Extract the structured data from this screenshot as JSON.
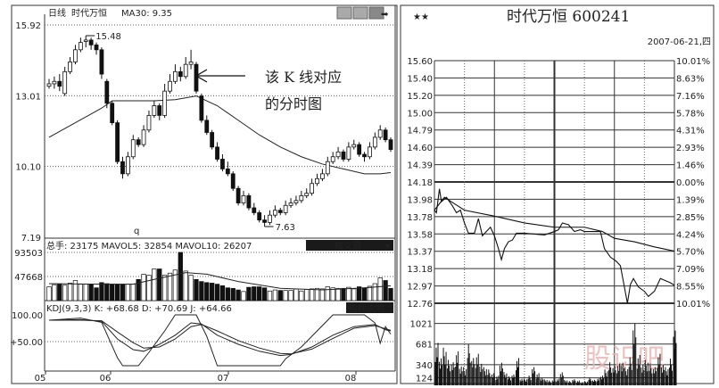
{
  "left_panel": {
    "header": {
      "period": "日线",
      "stock_name": "时代万恒",
      "ma_label": "MA30: 9.35"
    },
    "price_axis": [
      "15.92",
      "13.01",
      "10.10",
      "7.19"
    ],
    "high_label": "15.48",
    "low_label": "7.63",
    "small_mark": "q",
    "annotation": {
      "line1": "该 K 线对应",
      "line2": "的分时图"
    },
    "volume_header": {
      "text": "总手: 23175 MAVOL5: 32854 MAVOL10: 26207",
      "button": "成交量"
    },
    "volume_axis": [
      "93503",
      "47668"
    ],
    "kdj_header": {
      "text": "KDJ(9,3,3) K: +68.68 D: +70.69 J: +64.66",
      "button": "指标说明"
    },
    "kdj_axis": [
      "100.00",
      "+50.00"
    ],
    "date_axis": [
      "05",
      "06",
      "07",
      "08"
    ]
  },
  "right_panel": {
    "title": "时代万恒  600241",
    "date": "2007-06-21,四",
    "price_labels": [
      "15.60",
      "15.40",
      "15.20",
      "15.00",
      "14.79",
      "14.60",
      "14.39",
      "14.18",
      "13.98",
      "13.78",
      "13.58",
      "13.37",
      "13.18",
      "12.97",
      "12.76"
    ],
    "pct_labels": [
      "10.01%",
      "8.63%",
      "7.16%",
      "5.78%",
      "4.31%",
      "2.93%",
      "1.46%",
      "0.00%",
      "1.39%",
      "2.85%",
      "4.24%",
      "5.70%",
      "7.09%",
      "8.55%",
      "10.01%"
    ],
    "volume_labels": [
      "1021",
      "681",
      "340",
      "124"
    ],
    "watermark": "股识吧"
  },
  "colors": {
    "candle_up": "#ffffff",
    "candle_down": "#111111",
    "line": "#222222",
    "grid": "#333333",
    "button_bg": "#1a1a1a",
    "watermark": "#e8b4b0"
  },
  "chart_data": [
    {
      "type": "candlestick",
      "title": "日线 时代万恒",
      "ylim": [
        7.19,
        15.92
      ],
      "candles": [
        [
          13.4,
          13.7,
          13.3,
          13.5
        ],
        [
          13.5,
          13.8,
          13.3,
          13.6
        ],
        [
          13.6,
          13.9,
          13.2,
          13.4
        ],
        [
          13.1,
          14.2,
          13.0,
          14.0
        ],
        [
          14.0,
          14.6,
          13.9,
          14.4
        ],
        [
          14.4,
          15.1,
          14.3,
          14.9
        ],
        [
          14.9,
          15.4,
          14.8,
          15.2
        ],
        [
          15.3,
          15.48,
          15.0,
          15.3
        ],
        [
          15.3,
          15.4,
          14.9,
          15.1
        ],
        [
          15.1,
          15.2,
          14.7,
          14.9
        ],
        [
          14.9,
          15.0,
          13.7,
          13.9
        ],
        [
          13.6,
          13.7,
          12.5,
          12.7
        ],
        [
          12.7,
          12.8,
          11.8,
          11.9
        ],
        [
          11.9,
          12.0,
          10.2,
          10.3
        ],
        [
          10.3,
          10.5,
          9.6,
          9.8
        ],
        [
          9.8,
          10.7,
          9.7,
          10.5
        ],
        [
          10.5,
          11.4,
          10.4,
          11.2
        ],
        [
          11.2,
          11.3,
          10.9,
          11.0
        ],
        [
          11.0,
          11.8,
          10.9,
          11.6
        ],
        [
          11.6,
          12.4,
          11.5,
          12.2
        ],
        [
          12.2,
          12.8,
          12.1,
          12.6
        ],
        [
          12.6,
          12.7,
          12.0,
          12.2
        ],
        [
          12.2,
          13.5,
          12.1,
          13.2
        ],
        [
          13.2,
          13.9,
          13.1,
          13.6
        ],
        [
          13.6,
          14.3,
          13.5,
          14.0
        ],
        [
          14.0,
          14.2,
          13.6,
          13.8
        ],
        [
          13.8,
          14.6,
          13.7,
          14.3
        ],
        [
          14.3,
          14.9,
          14.1,
          14.4
        ],
        [
          14.3,
          14.4,
          13.1,
          13.2
        ],
        [
          13.0,
          13.1,
          11.9,
          12.0
        ],
        [
          12.0,
          12.2,
          11.4,
          11.5
        ],
        [
          11.5,
          11.6,
          10.8,
          10.9
        ],
        [
          10.9,
          11.1,
          10.3,
          10.4
        ],
        [
          10.4,
          10.6,
          9.9,
          10.0
        ],
        [
          10.0,
          10.3,
          9.7,
          9.8
        ],
        [
          9.8,
          9.9,
          9.1,
          9.2
        ],
        [
          9.2,
          9.3,
          8.5,
          8.6
        ],
        [
          8.6,
          9.1,
          8.5,
          8.9
        ],
        [
          8.9,
          9.0,
          8.3,
          8.4
        ],
        [
          8.4,
          8.6,
          8.1,
          8.2
        ],
        [
          8.2,
          8.3,
          7.8,
          7.9
        ],
        [
          7.9,
          8.1,
          7.63,
          7.8
        ],
        [
          7.8,
          8.3,
          7.7,
          8.1
        ],
        [
          8.1,
          8.5,
          8.0,
          8.3
        ],
        [
          8.3,
          8.4,
          8.1,
          8.2
        ],
        [
          8.2,
          8.7,
          8.1,
          8.5
        ],
        [
          8.5,
          8.8,
          8.4,
          8.6
        ],
        [
          8.6,
          8.9,
          8.5,
          8.7
        ],
        [
          8.7,
          9.1,
          8.6,
          8.9
        ],
        [
          8.9,
          9.2,
          8.8,
          9.0
        ],
        [
          9.0,
          9.6,
          8.9,
          9.4
        ],
        [
          9.4,
          9.8,
          9.3,
          9.6
        ],
        [
          9.6,
          10.0,
          9.5,
          9.8
        ],
        [
          9.8,
          10.5,
          9.7,
          10.3
        ],
        [
          10.3,
          10.7,
          10.2,
          10.5
        ],
        [
          10.5,
          10.9,
          10.4,
          10.7
        ],
        [
          10.7,
          10.8,
          10.3,
          10.4
        ],
        [
          10.4,
          11.1,
          10.3,
          10.9
        ],
        [
          10.9,
          11.2,
          10.8,
          11.0
        ],
        [
          11.0,
          11.1,
          10.5,
          10.6
        ],
        [
          10.6,
          10.7,
          10.3,
          10.5
        ],
        [
          10.5,
          11.1,
          10.4,
          10.9
        ],
        [
          10.9,
          11.5,
          10.8,
          11.3
        ],
        [
          11.3,
          11.8,
          11.2,
          11.6
        ],
        [
          11.6,
          11.7,
          11.1,
          11.2
        ],
        [
          11.2,
          11.3,
          10.7,
          10.8
        ]
      ],
      "ma30": [
        [
          0,
          11.3
        ],
        [
          5,
          11.9
        ],
        [
          10,
          12.5
        ],
        [
          12,
          12.8
        ],
        [
          20,
          12.8
        ],
        [
          24,
          12.85
        ],
        [
          28,
          13.0
        ],
        [
          32,
          12.6
        ],
        [
          36,
          12.0
        ],
        [
          40,
          11.4
        ],
        [
          44,
          10.9
        ],
        [
          48,
          10.5
        ],
        [
          52,
          10.2
        ],
        [
          56,
          10.0
        ],
        [
          60,
          9.8
        ],
        [
          63,
          9.8
        ],
        [
          65,
          9.85
        ]
      ]
    },
    {
      "type": "bar",
      "title": "成交量",
      "ylim": [
        0,
        93503
      ],
      "values": [
        28000,
        32000,
        33000,
        31000,
        35000,
        40000,
        33000,
        33000,
        33000,
        26000,
        36000,
        34000,
        33000,
        33000,
        33000,
        33000,
        33000,
        42000,
        52000,
        50000,
        62000,
        62000,
        50000,
        54000,
        60000,
        93503,
        58000,
        50000,
        42000,
        38000,
        36000,
        35000,
        33000,
        30000,
        26000,
        25000,
        22000,
        19000,
        27000,
        28000,
        28000,
        26000,
        20000,
        22000,
        21000,
        21000,
        21000,
        24000,
        20000,
        23000,
        24000,
        25000,
        24000,
        28000,
        26000,
        25000,
        25000,
        27000,
        24000,
        28000,
        26000,
        29000,
        34000,
        45000,
        40000,
        25000
      ],
      "mavol": [
        [
          0,
          34000
        ],
        [
          10,
          33000
        ],
        [
          16,
          33000
        ],
        [
          20,
          42000
        ],
        [
          26,
          55000
        ],
        [
          30,
          52000
        ],
        [
          36,
          38000
        ],
        [
          44,
          25000
        ],
        [
          52,
          22000
        ],
        [
          60,
          26000
        ],
        [
          65,
          30000
        ]
      ]
    },
    {
      "type": "line",
      "title": "KDJ(9,3,3)",
      "ylim": [
        0,
        100
      ],
      "series": [
        {
          "name": "K",
          "points": [
            [
              0,
              90
            ],
            [
              6,
              91
            ],
            [
              10,
              88
            ],
            [
              13,
              55
            ],
            [
              16,
              35
            ],
            [
              18,
              32
            ],
            [
              21,
              45
            ],
            [
              24,
              62
            ],
            [
              27,
              85
            ],
            [
              29,
              83
            ],
            [
              32,
              62
            ],
            [
              36,
              45
            ],
            [
              40,
              32
            ],
            [
              44,
              24
            ],
            [
              46,
              26
            ],
            [
              50,
              40
            ],
            [
              54,
              62
            ],
            [
              58,
              78
            ],
            [
              62,
              82
            ],
            [
              64,
              72
            ],
            [
              65,
              70
            ]
          ]
        },
        {
          "name": "D",
          "points": [
            [
              0,
              90
            ],
            [
              6,
              90
            ],
            [
              10,
              89
            ],
            [
              13,
              68
            ],
            [
              16,
              48
            ],
            [
              18,
              38
            ],
            [
              21,
              40
            ],
            [
              24,
              55
            ],
            [
              27,
              78
            ],
            [
              29,
              82
            ],
            [
              32,
              70
            ],
            [
              36,
              52
            ],
            [
              40,
              38
            ],
            [
              44,
              28
            ],
            [
              46,
              27
            ],
            [
              50,
              36
            ],
            [
              54,
              56
            ],
            [
              58,
              75
            ],
            [
              62,
              80
            ],
            [
              64,
              74
            ],
            [
              65,
              71
            ]
          ]
        },
        {
          "name": "J",
          "points": [
            [
              0,
              90
            ],
            [
              6,
              94
            ],
            [
              10,
              86
            ],
            [
              13,
              20
            ],
            [
              14,
              5
            ],
            [
              17,
              5
            ],
            [
              19,
              30
            ],
            [
              22,
              70
            ],
            [
              24,
              100
            ],
            [
              28,
              100
            ],
            [
              30,
              60
            ],
            [
              32,
              5
            ],
            [
              38,
              5
            ],
            [
              44,
              5
            ],
            [
              45,
              18
            ],
            [
              48,
              40
            ],
            [
              52,
              80
            ],
            [
              54,
              100
            ],
            [
              60,
              100
            ],
            [
              62,
              85
            ],
            [
              63,
              47
            ],
            [
              64,
              78
            ],
            [
              65,
              64
            ]
          ]
        }
      ]
    },
    {
      "type": "line",
      "title": "时代万恒 600241 2007-06-21",
      "ylim": [
        12.76,
        15.6
      ],
      "xlim": [
        0,
        240
      ],
      "series": [
        {
          "name": "price",
          "points": [
            [
              0,
              13.85
            ],
            [
              2,
              13.82
            ],
            [
              5,
              14.1
            ],
            [
              7,
              13.95
            ],
            [
              12,
              14.0
            ],
            [
              18,
              13.9
            ],
            [
              22,
              13.82
            ],
            [
              26,
              13.85
            ],
            [
              30,
              13.7
            ],
            [
              34,
              13.58
            ],
            [
              40,
              13.58
            ],
            [
              44,
              13.75
            ],
            [
              48,
              13.55
            ],
            [
              52,
              13.6
            ],
            [
              56,
              13.65
            ],
            [
              60,
              13.55
            ],
            [
              64,
              13.4
            ],
            [
              67,
              13.27
            ],
            [
              70,
              13.4
            ],
            [
              74,
              13.48
            ],
            [
              78,
              13.5
            ],
            [
              82,
              13.58
            ],
            [
              90,
              13.58
            ],
            [
              100,
              13.57
            ],
            [
              110,
              13.56
            ],
            [
              120,
              13.6
            ],
            [
              124,
              13.62
            ],
            [
              128,
              13.7
            ],
            [
              134,
              13.68
            ],
            [
              140,
              13.6
            ],
            [
              146,
              13.62
            ],
            [
              150,
              13.6
            ],
            [
              166,
              13.6
            ],
            [
              170,
              13.4
            ],
            [
              176,
              13.3
            ],
            [
              182,
              13.25
            ],
            [
              186,
              13.2
            ],
            [
              190,
              12.95
            ],
            [
              193,
              12.76
            ],
            [
              196,
              12.98
            ],
            [
              199,
              13.05
            ],
            [
              204,
              12.95
            ],
            [
              210,
              12.9
            ],
            [
              214,
              12.84
            ],
            [
              220,
              12.9
            ],
            [
              226,
              13.05
            ],
            [
              232,
              13.02
            ],
            [
              236,
              13.0
            ],
            [
              240,
              12.97
            ]
          ]
        },
        {
          "name": "average",
          "points": [
            [
              0,
              13.85
            ],
            [
              10,
              14.0
            ],
            [
              30,
              13.85
            ],
            [
              60,
              13.78
            ],
            [
              90,
              13.7
            ],
            [
              120,
              13.65
            ],
            [
              150,
              13.65
            ],
            [
              168,
              13.6
            ],
            [
              180,
              13.52
            ],
            [
              200,
              13.48
            ],
            [
              220,
              13.42
            ],
            [
              240,
              13.37
            ]
          ]
        }
      ],
      "volume": [
        700,
        500,
        620,
        420,
        380,
        560,
        350,
        300,
        680,
        450,
        520,
        400,
        300,
        260,
        200,
        160,
        420,
        220,
        150,
        180,
        450,
        120,
        110,
        160,
        300,
        200,
        140,
        100,
        80,
        90,
        110,
        240,
        90,
        70,
        100,
        80,
        60,
        70,
        130,
        90,
        120,
        180,
        260,
        380,
        320,
        360,
        420,
        300,
        460,
        1021,
        500,
        380,
        420,
        360,
        300,
        520,
        380,
        300,
        440,
        900
      ]
    }
  ]
}
